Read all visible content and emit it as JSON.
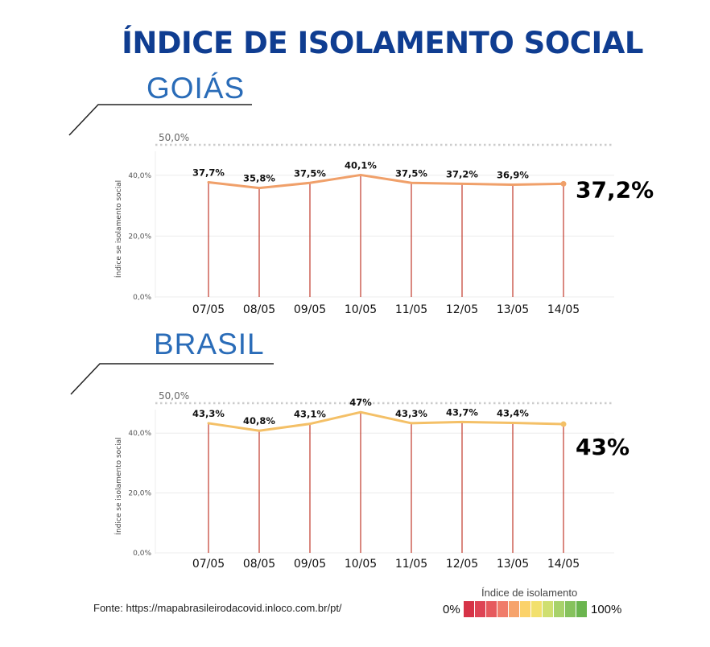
{
  "title": "ÍNDICE DE ISOLAMENTO SOCIAL",
  "footer": "Fonte: https://mapabrasileirodacovid.inloco.com.br/pt/",
  "legend": {
    "title": "Índice de isolamento",
    "low": "0%",
    "high": "100%",
    "colors": [
      "#d63347",
      "#de4455",
      "#e65a5e",
      "#f07c6a",
      "#f6a36c",
      "#fbd26a",
      "#f2e06d",
      "#cfdf70",
      "#a8d26a",
      "#86c25d",
      "#6bb54f"
    ]
  },
  "colors": {
    "goias_line": "#f0a06a",
    "brasil_line": "#f4c067",
    "stem": "#c0392b",
    "reference": "#cccccc"
  },
  "chart_data": [
    {
      "type": "line",
      "region": "GOIÁS",
      "categories": [
        "07/05",
        "08/05",
        "09/05",
        "10/05",
        "11/05",
        "12/05",
        "13/05",
        "14/05"
      ],
      "values": [
        37.7,
        35.8,
        37.5,
        40.1,
        37.5,
        37.2,
        36.9,
        37.2
      ],
      "value_labels": [
        "37,7%",
        "35,8%",
        "37,5%",
        "40,1%",
        "37,5%",
        "37,2%",
        "36,9%",
        ""
      ],
      "highlight": "37,2%",
      "ylabel": "Índice se isolamento social",
      "yticks": [
        0,
        20,
        40
      ],
      "ytick_labels": [
        "0,0%",
        "20,0%",
        "40,0%"
      ],
      "ylim": [
        0,
        50
      ],
      "reference_value": 50,
      "reference_label": "50,0%"
    },
    {
      "type": "line",
      "region": "BRASIL",
      "categories": [
        "07/05",
        "08/05",
        "09/05",
        "10/05",
        "11/05",
        "12/05",
        "13/05",
        "14/05"
      ],
      "values": [
        43.3,
        40.8,
        43.1,
        47,
        43.3,
        43.7,
        43.4,
        43
      ],
      "value_labels": [
        "43,3%",
        "40,8%",
        "43,1%",
        "47%",
        "43,3%",
        "43,7%",
        "43,4%",
        ""
      ],
      "highlight": "43%",
      "ylabel": "Índice se isolamento social",
      "yticks": [
        0,
        20,
        40
      ],
      "ytick_labels": [
        "0,0%",
        "20,0%",
        "40,0%"
      ],
      "ylim": [
        0,
        50
      ],
      "reference_value": 50,
      "reference_label": "50,0%"
    }
  ]
}
